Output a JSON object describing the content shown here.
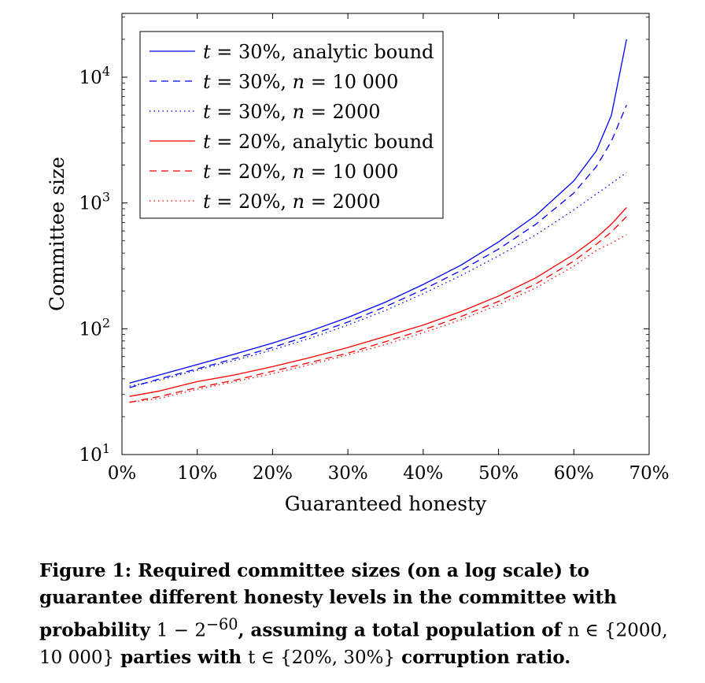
{
  "chart_data": {
    "type": "line",
    "xlabel": "Guaranteed honesty",
    "ylabel": "Committee size",
    "x_scale": "linear",
    "y_scale": "log",
    "xlim": [
      0,
      70
    ],
    "ylim": [
      10,
      30000
    ],
    "x_ticks": [
      0,
      10,
      20,
      30,
      40,
      50,
      60,
      70
    ],
    "x_tick_labels": [
      "0%",
      "10%",
      "20%",
      "30%",
      "40%",
      "50%",
      "60%",
      "70%"
    ],
    "y_ticks": [
      10,
      100,
      1000,
      10000
    ],
    "y_tick_bases": [
      "10",
      "10",
      "10",
      "10"
    ],
    "y_tick_exps": [
      "1",
      "2",
      "3",
      "4"
    ],
    "grid": false,
    "legend_position": "top-left",
    "series": [
      {
        "name_parts": [
          "t",
          " = 30%, analytic bound"
        ],
        "color": "#0000ff",
        "style": "solid",
        "x": [
          1,
          5,
          10,
          15,
          20,
          25,
          30,
          35,
          40,
          45,
          50,
          55,
          60,
          63,
          65,
          67
        ],
        "y": [
          37,
          43,
          52,
          63,
          77,
          96,
          123,
          163,
          225,
          320,
          490,
          800,
          1500,
          2600,
          5000,
          20000
        ]
      },
      {
        "name_parts": [
          "t",
          " = 30%, ",
          "n",
          " = 10 000"
        ],
        "color": "#0000ff",
        "style": "dashed",
        "x": [
          1,
          5,
          10,
          15,
          20,
          25,
          30,
          35,
          40,
          45,
          50,
          55,
          60,
          63,
          65,
          67
        ],
        "y": [
          34,
          40,
          48,
          58,
          71,
          89,
          113,
          150,
          205,
          290,
          430,
          680,
          1200,
          1950,
          3100,
          6000
        ]
      },
      {
        "name_parts": [
          "t",
          " = 30%, ",
          "n",
          " = 2000"
        ],
        "color": "#0000ff",
        "style": "dotted",
        "x": [
          1,
          5,
          10,
          15,
          20,
          25,
          30,
          35,
          40,
          45,
          50,
          55,
          60,
          63,
          65,
          67
        ],
        "y": [
          35,
          39,
          47,
          56,
          68,
          84,
          107,
          140,
          190,
          265,
          380,
          560,
          880,
          1180,
          1430,
          1750
        ]
      },
      {
        "name_parts": [
          "t",
          " = 20%, analytic bound"
        ],
        "color": "#ff0000",
        "style": "solid",
        "x": [
          1,
          5,
          10,
          15,
          20,
          25,
          30,
          35,
          40,
          45,
          50,
          55,
          60,
          63,
          65,
          67
        ],
        "y": [
          29,
          32,
          38,
          43,
          50,
          59,
          71,
          87,
          107,
          137,
          182,
          255,
          390,
          530,
          680,
          920
        ]
      },
      {
        "name_parts": [
          "t",
          " = 20%, ",
          "n",
          " = 10 000"
        ],
        "color": "#ff0000",
        "style": "dashed",
        "x": [
          1,
          5,
          10,
          15,
          20,
          25,
          30,
          35,
          40,
          45,
          50,
          55,
          60,
          63,
          65,
          67
        ],
        "y": [
          26,
          29,
          34,
          39,
          46,
          54,
          64,
          79,
          98,
          125,
          165,
          228,
          345,
          470,
          590,
          780
        ]
      },
      {
        "name_parts": [
          "t",
          " = 20%, ",
          "n",
          " = 2000"
        ],
        "color": "#ff0000",
        "style": "dotted",
        "x": [
          1,
          5,
          10,
          15,
          20,
          25,
          30,
          35,
          40,
          45,
          50,
          55,
          60,
          63,
          65,
          67
        ],
        "y": [
          26,
          28,
          33,
          38,
          44,
          52,
          62,
          75,
          93,
          118,
          155,
          212,
          315,
          420,
          480,
          560
        ]
      }
    ]
  },
  "caption": {
    "label": "Figure 1:",
    "text1": " Required committee sizes (on a log scale) to guarantee different honesty levels in the committee with probability ",
    "math1": "1 − 2",
    "math1_sup": "−60",
    "text2": ", assuming a total population of ",
    "math2": "n ∈ {2000, 10 000}",
    "text3": " parties with ",
    "math3": "t ∈ {20%, 30%}",
    "text4": " corruption ratio."
  }
}
